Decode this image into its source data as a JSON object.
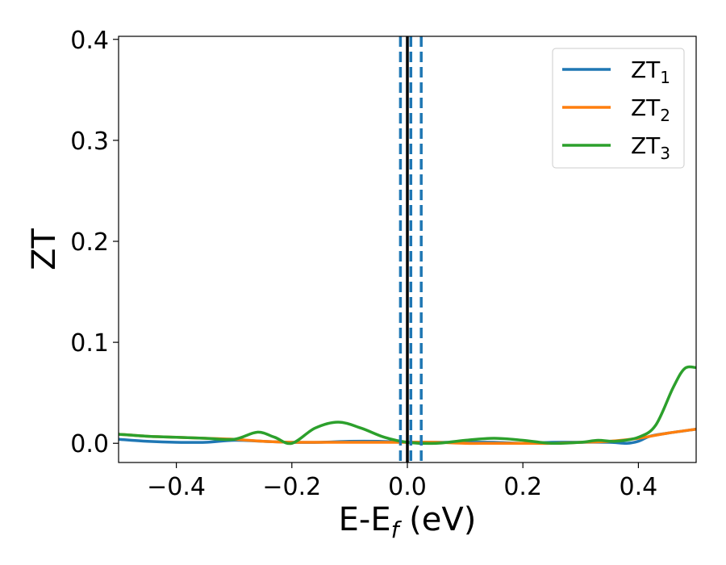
{
  "chart_data": {
    "type": "line",
    "xlabel": {
      "main": "E-E",
      "sub": "f",
      "unit": " (eV)"
    },
    "ylabel": "ZT",
    "xlim": [
      -0.5,
      0.5
    ],
    "ylim": [
      -0.019,
      0.403
    ],
    "xticks": [
      -0.4,
      -0.2,
      0.0,
      0.2,
      0.4
    ],
    "xtick_labels": [
      "−0.4",
      "−0.2",
      "0.0",
      "0.2",
      "0.4"
    ],
    "yticks": [
      0.0,
      0.1,
      0.2,
      0.3,
      0.4
    ],
    "ytick_labels": [
      "0.0",
      "0.1",
      "0.2",
      "0.3",
      "0.4"
    ],
    "legend_position": "top-right",
    "vlines": [
      {
        "x": 0.0,
        "color": "#000000",
        "style": "solid"
      },
      {
        "x": -0.012,
        "color": "#1f77b4",
        "style": "dashed"
      },
      {
        "x": 0.006,
        "color": "#1f77b4",
        "style": "dashed"
      },
      {
        "x": 0.024,
        "color": "#1f77b4",
        "style": "dashed"
      }
    ],
    "series": [
      {
        "name": "ZT",
        "sub": "1",
        "color": "#1f77b4",
        "x": [
          -0.5,
          -0.45,
          -0.4,
          -0.35,
          -0.3,
          -0.25,
          -0.2,
          -0.15,
          -0.1,
          -0.05,
          0.0,
          0.05,
          0.1,
          0.15,
          0.2,
          0.25,
          0.3,
          0.35,
          0.38,
          0.4,
          0.42,
          0.45,
          0.5
        ],
        "y": [
          0.004,
          0.002,
          0.001,
          0.001,
          0.003,
          0.002,
          0.001,
          0.001,
          0.002,
          0.002,
          0.001,
          0.001,
          0.001,
          0.001,
          0.0,
          0.001,
          0.001,
          0.001,
          0.0,
          0.002,
          0.007,
          0.01,
          0.014
        ]
      },
      {
        "name": "ZT",
        "sub": "2",
        "color": "#ff7f0e",
        "x": [
          -0.5,
          -0.45,
          -0.4,
          -0.35,
          -0.3,
          -0.25,
          -0.2,
          -0.15,
          -0.1,
          -0.05,
          0.0,
          0.05,
          0.1,
          0.15,
          0.2,
          0.25,
          0.3,
          0.35,
          0.4,
          0.45,
          0.5
        ],
        "y": [
          0.009,
          0.007,
          0.006,
          0.005,
          0.004,
          0.002,
          0.001,
          0.001,
          0.001,
          0.001,
          0.001,
          0.001,
          0.0,
          0.0,
          0.0,
          0.0,
          0.001,
          0.002,
          0.005,
          0.01,
          0.014
        ]
      },
      {
        "name": "ZT",
        "sub": "3",
        "color": "#2ca02c",
        "x": [
          -0.5,
          -0.45,
          -0.4,
          -0.35,
          -0.3,
          -0.26,
          -0.23,
          -0.2,
          -0.16,
          -0.12,
          -0.08,
          -0.04,
          0.0,
          0.05,
          0.1,
          0.15,
          0.2,
          0.25,
          0.3,
          0.33,
          0.36,
          0.4,
          0.43,
          0.46,
          0.48,
          0.5
        ],
        "y": [
          0.009,
          0.007,
          0.006,
          0.005,
          0.004,
          0.011,
          0.006,
          0.0,
          0.015,
          0.021,
          0.015,
          0.006,
          0.001,
          0.0,
          0.003,
          0.005,
          0.003,
          0.0,
          0.001,
          0.003,
          0.002,
          0.006,
          0.018,
          0.055,
          0.074,
          0.075
        ]
      }
    ]
  }
}
